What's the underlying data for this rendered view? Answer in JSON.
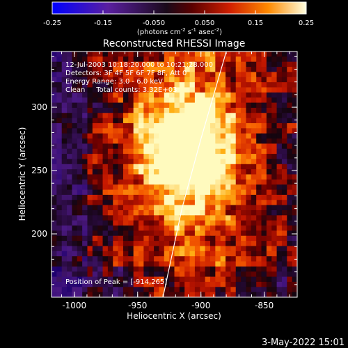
{
  "colorbar": {
    "ticks": [
      "-0.25",
      "-0.15",
      "-0.050",
      "0.050",
      "0.15",
      "0.25"
    ],
    "units_label": "(photons cm",
    "units_sup1": "-2",
    "units_mid": " s",
    "units_sup2": "-1",
    "units_end": " asec",
    "units_sup3": "-2",
    "units_close": ")"
  },
  "footer_date": "3-May-2022 15:01",
  "chart_data": {
    "type": "heatmap",
    "title": "Reconstructed RHESSI Image",
    "xlabel": "Heliocentric X (arcsec)",
    "ylabel": "Heliocentric Y (arcsec)",
    "xlim": [
      -1018,
      -824
    ],
    "ylim": [
      150,
      344
    ],
    "x_ticks": [
      "-1000",
      "-950",
      "-900",
      "-850"
    ],
    "y_ticks": [
      "200",
      "250",
      "300"
    ],
    "x_tick_values": [
      -1000,
      -950,
      -900,
      -850
    ],
    "y_tick_values": [
      200,
      250,
      300
    ],
    "colorbar_range": [
      -0.25,
      0.25
    ],
    "colormap": [
      "#0000ff",
      "#5a1fa0",
      "#1a0a1a",
      "#cc1a00",
      "#ff6a00",
      "#ffcc20",
      "#ffffd0"
    ],
    "annotations": [
      "12-Jul-2003 10:18:20.000 to 10:21:28.000",
      "Detectors: 3F 4F 5F 6F 7F 8F, Att 0",
      "Energy Range: 3.0 - 6.0 keV",
      "Clean     Total counts: 3.32E+03"
    ],
    "peak_label": "Position of Peak = [-914,265]",
    "peak_position": [
      -914,
      265
    ],
    "limb_curve": [
      [
        -930,
        150
      ],
      [
        -915,
        220
      ],
      [
        -900,
        275
      ],
      [
        -880,
        344
      ]
    ]
  }
}
